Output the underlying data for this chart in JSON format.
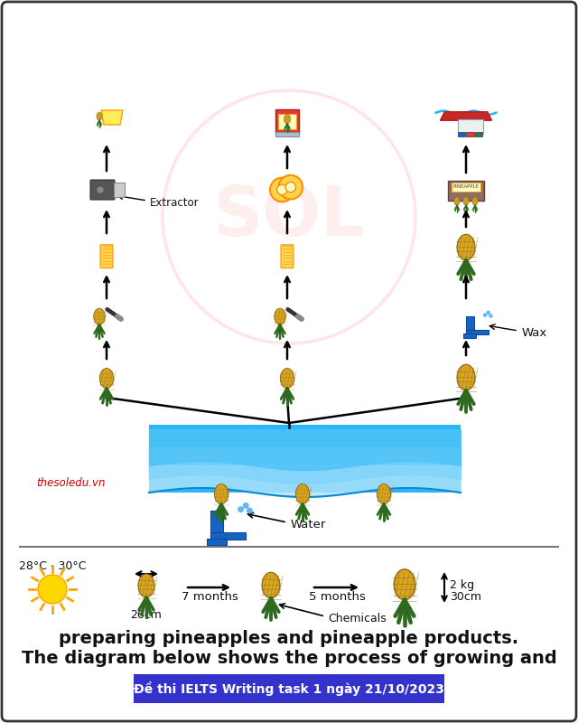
{
  "title_banner": "Đề thi IELTS Writing task 1 ngày 21/10/2023",
  "title_banner_bg": "#3333cc",
  "title_banner_fg": "#ffffff",
  "subtitle_line1": "The diagram below shows the process of growing and",
  "subtitle_line2": "preparing pineapples and pineapple products.",
  "bg_color": "#ffffff",
  "temp_label": "28°C - 30°C",
  "size1_label": "26cm",
  "arrow1_label": "7 months",
  "arrow2_label": "5 months",
  "chemicals_label": "Chemicals",
  "size2_label": "30cm",
  "weight2_label": "2 kg",
  "water_label": "Water",
  "wax_label": "Wax",
  "extractor_label": "Extractor",
  "watermark": "thesoledu.vn",
  "watermark_color": "#cc0000",
  "sun_color": "#FFD700",
  "pineapple_body": "#DAA520",
  "pineapple_leaf": "#2d6a1f",
  "wave_color1": "#29b6f6",
  "wave_color2": "#4fc3f7",
  "wave_color3": "#81d4fa",
  "wave_color4": "#b3e5fc",
  "tap_color": "#1565C0",
  "sol_circle_color": "#ffcccc",
  "border_color": "#333333"
}
